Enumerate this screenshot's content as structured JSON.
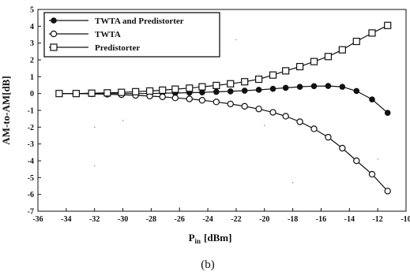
{
  "chart_data": {
    "type": "line",
    "xlabel_main": "P",
    "xlabel_sub": "in",
    "xlabel_unit": "[dBm]",
    "ylabel": "AM-to-AM[dB]",
    "caption": "(b)",
    "xlim": [
      -36,
      -10
    ],
    "ylim": [
      -7,
      5
    ],
    "xticks": [
      "-36",
      "-34",
      "-32",
      "-30",
      "-28",
      "-26",
      "-24",
      "-22",
      "-20",
      "-18",
      "-16",
      "-14",
      "-12",
      "-10"
    ],
    "yticks": [
      "5",
      "4",
      "3",
      "2",
      "1",
      "0",
      "-1",
      "-2",
      "-3",
      "-4",
      "-5",
      "-6",
      "-7"
    ],
    "legend_position": "top-left",
    "series": [
      {
        "name": "TWTA and Predistorter",
        "marker": "filled-circle",
        "x": [
          -34.5,
          -33.3,
          -32.2,
          -31.1,
          -30.1,
          -29.1,
          -28.1,
          -27.2,
          -26.3,
          -25.3,
          -24.4,
          -23.4,
          -22.4,
          -21.4,
          -20.4,
          -19.4,
          -18.5,
          -17.5,
          -16.5,
          -15.5,
          -14.5,
          -13.5,
          -12.4,
          -11.3
        ],
        "y": [
          0.0,
          0.0,
          0.0,
          0.0,
          0.0,
          0.0,
          0.0,
          0.02,
          0.03,
          0.05,
          0.07,
          0.1,
          0.13,
          0.17,
          0.22,
          0.28,
          0.34,
          0.4,
          0.44,
          0.45,
          0.4,
          0.15,
          -0.35,
          -1.15
        ]
      },
      {
        "name": "TWTA",
        "marker": "open-circle",
        "x": [
          -34.5,
          -33.3,
          -32.2,
          -31.1,
          -30.1,
          -29.1,
          -28.1,
          -27.2,
          -26.3,
          -25.3,
          -24.4,
          -23.4,
          -22.4,
          -21.4,
          -20.4,
          -19.4,
          -18.5,
          -17.5,
          -16.5,
          -15.5,
          -14.5,
          -13.5,
          -12.4,
          -11.3
        ],
        "y": [
          0.0,
          0.0,
          -0.02,
          -0.04,
          -0.07,
          -0.11,
          -0.15,
          -0.2,
          -0.26,
          -0.32,
          -0.4,
          -0.5,
          -0.62,
          -0.76,
          -0.92,
          -1.12,
          -1.35,
          -1.68,
          -2.1,
          -2.6,
          -3.25,
          -4.0,
          -4.8,
          -5.8
        ]
      },
      {
        "name": "Predistorter",
        "marker": "open-square",
        "x": [
          -34.5,
          -33.3,
          -32.2,
          -31.1,
          -30.1,
          -29.1,
          -28.1,
          -27.2,
          -26.3,
          -25.3,
          -24.4,
          -23.4,
          -22.4,
          -21.4,
          -20.4,
          -19.4,
          -18.5,
          -17.5,
          -16.5,
          -15.5,
          -14.5,
          -13.5,
          -12.4,
          -11.3
        ],
        "y": [
          0.0,
          0.0,
          0.02,
          0.04,
          0.07,
          0.11,
          0.15,
          0.2,
          0.26,
          0.32,
          0.4,
          0.48,
          0.58,
          0.7,
          0.85,
          1.1,
          1.35,
          1.6,
          1.9,
          2.2,
          2.6,
          3.1,
          3.6,
          4.05
        ]
      }
    ]
  }
}
